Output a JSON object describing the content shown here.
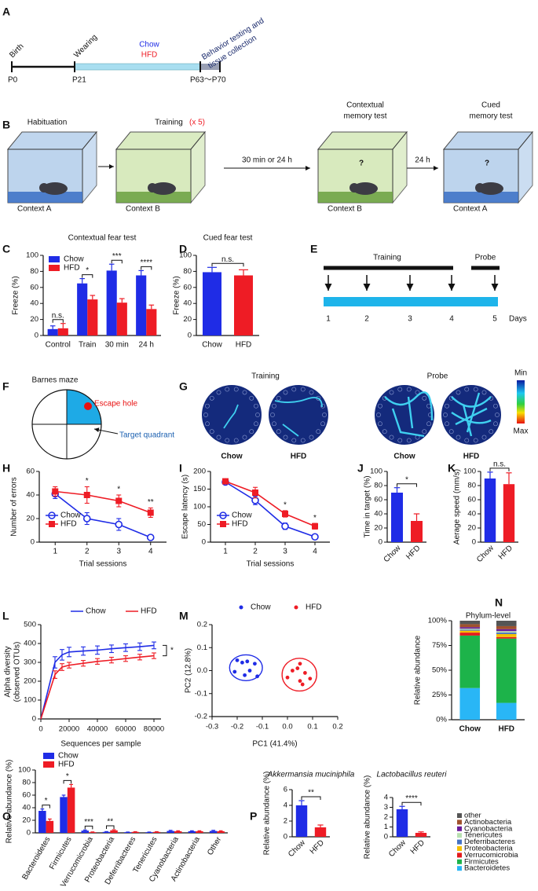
{
  "letters": [
    "A",
    "B",
    "C",
    "D",
    "E",
    "F",
    "G",
    "H",
    "I",
    "J",
    "K",
    "L",
    "M",
    "N",
    "O",
    "P"
  ],
  "timeline": {
    "events": [
      "Birth",
      "Wearing"
    ],
    "diets": [
      "Chow",
      "HFD"
    ],
    "testing": [
      "Behavior testing and",
      "tissue collection"
    ],
    "ages": [
      "P0",
      "P21",
      "P63～P70"
    ]
  },
  "protocol": {
    "stages": [
      {
        "title": [
          "Habituation"
        ],
        "context": "Context A"
      },
      {
        "title": [
          "Training"
        ],
        "repeat": "(x 5)",
        "context": "Context B"
      },
      {
        "title": [
          "Contextual",
          "memory test"
        ],
        "mark": "?",
        "context": "Context B"
      },
      {
        "title": [
          "Cued",
          "memory test"
        ],
        "mark": "?",
        "context": "Context A"
      }
    ],
    "intervals": [
      "30 min or 24 h",
      "24 h"
    ]
  },
  "schedule": {
    "phases": [
      "Training",
      "Probe"
    ],
    "days": [
      "1",
      "2",
      "3",
      "4",
      "5"
    ],
    "unit": "Days"
  },
  "maze": {
    "title": "Barnes maze",
    "hole": "Escape hole",
    "quadrant": "Target quadrant"
  },
  "tracks": {
    "phases": [
      "Training",
      "Probe"
    ],
    "groups": [
      "Chow",
      "HFD",
      "Chow",
      "HFD"
    ],
    "scale": [
      "Min",
      "Max"
    ]
  },
  "chart_data": [
    {
      "type": "bar",
      "title": "Contextual fear test",
      "ylabel": "Freeze (%)",
      "categories": [
        "Control",
        "Train",
        "30 min",
        "24 h"
      ],
      "series": [
        {
          "name": "Chow",
          "color": "#1f2ce6",
          "values": [
            8,
            65,
            81,
            75
          ],
          "errors": [
            4,
            6,
            8,
            6
          ]
        },
        {
          "name": "HFD",
          "color": "#ee1c25",
          "values": [
            9,
            45,
            41,
            33
          ],
          "errors": [
            6,
            5,
            5,
            5
          ]
        }
      ],
      "ylim": [
        0,
        100
      ],
      "yticks": [
        0,
        20,
        40,
        60,
        80,
        100
      ],
      "annotations": [
        {
          "text": "n.s.",
          "category": "Control"
        },
        {
          "text": "*",
          "category": "Train"
        },
        {
          "text": "***",
          "category": "30 min"
        },
        {
          "text": "****",
          "category": "24 h"
        }
      ]
    },
    {
      "type": "bar",
      "title": "Cued fear test",
      "ylabel": "Freeze (%)",
      "categories": [
        "Chow",
        "HFD"
      ],
      "values": [
        79,
        75
      ],
      "errors": [
        6,
        7
      ],
      "colors": [
        "#1f2ce6",
        "#ee1c25"
      ],
      "ylim": [
        0,
        100
      ],
      "yticks": [
        0,
        20,
        40,
        60,
        80,
        100
      ],
      "annotation": "n.s."
    },
    {
      "type": "line",
      "ylabel": "Number of errors",
      "xlabel": "Trial sessions",
      "categories": [
        "1",
        "2",
        "3",
        "4"
      ],
      "series": [
        {
          "name": "Chow",
          "color": "#1f2ce6",
          "marker": "circle",
          "values": [
            41,
            20,
            15,
            4
          ],
          "errors": [
            4,
            5,
            5,
            2
          ]
        },
        {
          "name": "HFD",
          "color": "#ee1c25",
          "marker": "square",
          "values": [
            43,
            40,
            35,
            25
          ],
          "errors": [
            4,
            7,
            5,
            4
          ]
        }
      ],
      "ylim": [
        0,
        60
      ],
      "yticks": [
        0,
        20,
        40,
        60
      ],
      "annotations": [
        {
          "text": "*",
          "category": "2"
        },
        {
          "text": "*",
          "category": "3"
        },
        {
          "text": "**",
          "category": "4"
        }
      ]
    },
    {
      "type": "line",
      "ylabel": "Escape latency (s)",
      "xlabel": "Trial sessions",
      "categories": [
        "1",
        "2",
        "3",
        "4"
      ],
      "series": [
        {
          "name": "Chow",
          "color": "#1f2ce6",
          "marker": "circle",
          "values": [
            170,
            118,
            45,
            15
          ],
          "errors": [
            5,
            12,
            9,
            5
          ]
        },
        {
          "name": "HFD",
          "color": "#ee1c25",
          "marker": "square",
          "values": [
            172,
            140,
            80,
            45
          ],
          "errors": [
            5,
            15,
            9,
            8
          ]
        }
      ],
      "ylim": [
        0,
        200
      ],
      "yticks": [
        0,
        50,
        100,
        150,
        200
      ],
      "annotations": [
        {
          "text": "*",
          "category": "3"
        },
        {
          "text": "*",
          "category": "4"
        }
      ]
    },
    {
      "type": "bar",
      "ylabel": "Time in target (%)",
      "categories": [
        "Chow",
        "HFD"
      ],
      "values": [
        70,
        30
      ],
      "errors": [
        7,
        10
      ],
      "colors": [
        "#1f2ce6",
        "#ee1c25"
      ],
      "ylim": [
        0,
        100
      ],
      "yticks": [
        0,
        20,
        40,
        60,
        80,
        100
      ],
      "annotation": "*"
    },
    {
      "type": "bar",
      "ylabel": "Aerage speed (mm/s)",
      "categories": [
        "Chow",
        "HFD"
      ],
      "values": [
        90,
        82
      ],
      "errors": [
        9,
        16
      ],
      "colors": [
        "#1f2ce6",
        "#ee1c25"
      ],
      "ylim": [
        0,
        100
      ],
      "yticks": [
        0,
        20,
        40,
        60,
        80,
        100
      ],
      "annotation": "n.s."
    },
    {
      "type": "line",
      "ylabel": [
        "Alpha diversity",
        "(observed OTUs)"
      ],
      "xlabel": "Sequences per sample",
      "x": [
        0,
        10000,
        15000,
        20000,
        30000,
        40000,
        50000,
        60000,
        70000,
        80000
      ],
      "xlim": [
        0,
        85000
      ],
      "xticks": [
        0,
        20000,
        40000,
        60000,
        80000
      ],
      "series": [
        {
          "name": "Chow",
          "color": "#1f2ce6",
          "values": [
            0,
            300,
            340,
            355,
            360,
            365,
            372,
            378,
            383,
            390
          ],
          "errors": [
            0,
            30,
            28,
            25,
            22,
            22,
            20,
            20,
            20,
            18
          ]
        },
        {
          "name": "HFD",
          "color": "#ee1c25",
          "values": [
            0,
            235,
            275,
            285,
            295,
            305,
            312,
            320,
            328,
            335
          ],
          "errors": [
            0,
            20,
            18,
            15,
            15,
            15,
            15,
            15,
            15,
            15
          ]
        }
      ],
      "ylim": [
        0,
        500
      ],
      "yticks": [
        0,
        100,
        200,
        300,
        400,
        500
      ],
      "annotation": "*"
    },
    {
      "type": "scatter",
      "xlabel": "PC1 (41.4%)",
      "ylabel": "PC2 (12.8%)",
      "xlim": [
        -0.3,
        0.2
      ],
      "xticks": [
        -0.3,
        -0.2,
        -0.1,
        {
          "value": 0,
          "label": "0.0"
        },
        0.1,
        0.2
      ],
      "ylim": [
        -0.2,
        0.2
      ],
      "yticks": [
        -0.2,
        -0.1,
        {
          "value": 0,
          "label": "0.0"
        },
        0.1,
        0.2
      ],
      "series": [
        {
          "name": "Chow",
          "color": "#1f2ce6",
          "x": [
            -0.2,
            -0.18,
            -0.16,
            -0.13,
            -0.21,
            -0.17,
            -0.12,
            -0.15
          ],
          "y": [
            0.045,
            0.035,
            0.04,
            0.03,
            -0.005,
            -0.02,
            -0.025,
            0.0
          ]
        },
        {
          "name": "HFD",
          "color": "#ee1c25",
          "x": [
            0.05,
            0.04,
            0.02,
            0.07,
            0.0,
            0.05,
            0.09,
            0.06
          ],
          "y": [
            0.03,
            0.01,
            0.0,
            -0.01,
            -0.03,
            -0.045,
            -0.035,
            -0.06
          ]
        }
      ]
    },
    {
      "type": "stacked_bar",
      "title": "Phylum-level",
      "ylabel": "Relative abundance",
      "categories": [
        "Chow",
        "HFD"
      ],
      "ylim": [
        0,
        100
      ],
      "yticks": [
        {
          "value": 0,
          "label": "0%"
        },
        {
          "value": 25,
          "label": "25%"
        },
        {
          "value": 50,
          "label": "50%"
        },
        {
          "value": 75,
          "label": "75%"
        },
        {
          "value": 100,
          "label": "100%"
        }
      ],
      "series": [
        {
          "name": "Bacteroidetes",
          "color": "#29b6f6",
          "values": [
            32,
            17
          ]
        },
        {
          "name": "Firmicutes",
          "color": "#1db34a",
          "values": [
            53,
            65
          ]
        },
        {
          "name": "Verrucomicrobia",
          "color": "#e31a1c",
          "values": [
            3,
            1.5
          ]
        },
        {
          "name": "Proteobacteria",
          "color": "#f5c000",
          "values": [
            2,
            3
          ]
        },
        {
          "name": "Deferribacteres",
          "color": "#4472c4",
          "values": [
            1,
            1.5
          ]
        },
        {
          "name": "Tenericutes",
          "color": "#b8e0b0",
          "values": [
            1,
            1.5
          ]
        },
        {
          "name": "Cyanobacteria",
          "color": "#6a1b9a",
          "values": [
            1.5,
            2
          ]
        },
        {
          "name": "Actinobacteria",
          "color": "#a0522d",
          "values": [
            3,
            3
          ]
        },
        {
          "name": "other",
          "color": "#555555",
          "values": [
            3.5,
            5.5
          ]
        }
      ]
    },
    {
      "type": "bar",
      "ylabel": "Relative abundance (%)",
      "categories": [
        "Bacteroidetes",
        "Firmicutes",
        "Verrucomicrobia",
        "Proteobacteria",
        "Deferribacteres",
        "Tenericutes",
        "Cyanobacteria",
        "Actinobacteria",
        "Other"
      ],
      "series": [
        {
          "name": "Chow",
          "color": "#1f2ce6",
          "values": [
            35,
            57,
            3.5,
            1.5,
            1,
            1,
            3,
            2.5,
            3
          ],
          "errors": [
            3,
            3,
            1,
            0.5,
            0.3,
            0.3,
            1,
            0.8,
            1
          ]
        },
        {
          "name": "HFD",
          "color": "#ee1c25",
          "values": [
            19,
            72,
            1,
            4,
            1.5,
            1.5,
            2.5,
            2.5,
            2.5
          ],
          "errors": [
            3,
            5,
            0.5,
            1,
            0.4,
            0.4,
            0.8,
            0.8,
            0.8
          ]
        }
      ],
      "ylim": [
        0,
        100
      ],
      "yticks": [
        0,
        20,
        40,
        60,
        80,
        100
      ],
      "annotations": [
        {
          "text": "*",
          "category": "Bacteroidetes"
        },
        {
          "text": "*",
          "category": "Firmicutes"
        },
        {
          "text": "***",
          "category": "Verrucomicrobia"
        },
        {
          "text": "**",
          "category": "Proteobacteria"
        }
      ]
    },
    {
      "type": "bar",
      "title": "Akkermansia muciniphila",
      "ylabel": "Relative abundance (%)",
      "categories": [
        "Chow",
        "HFD"
      ],
      "values": [
        4,
        1.2
      ],
      "errors": [
        0.6,
        0.3
      ],
      "colors": [
        "#1f2ce6",
        "#ee1c25"
      ],
      "ylim": [
        0,
        6
      ],
      "yticks": [
        0,
        2,
        4,
        6
      ],
      "annotation": "**"
    },
    {
      "type": "bar",
      "title": "Lactobacillus reuteri",
      "ylabel": "Relative abundance (%)",
      "categories": [
        "Chow",
        "HFD"
      ],
      "values": [
        2.8,
        0.4
      ],
      "errors": [
        0.3,
        0.1
      ],
      "colors": [
        "#1f2ce6",
        "#ee1c25"
      ],
      "ylim": [
        0,
        4
      ],
      "yticks": [
        0,
        1,
        2,
        3,
        4
      ],
      "annotation": "****"
    }
  ]
}
